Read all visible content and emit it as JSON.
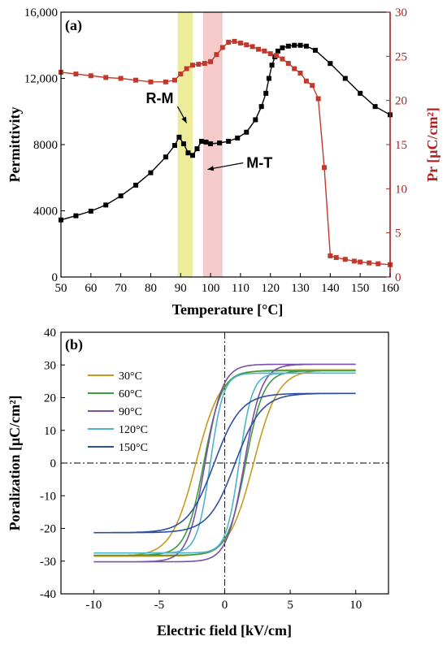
{
  "chart_data": [
    {
      "panel": "(a)",
      "type": "line",
      "xlabel": "Temperature [°C]",
      "ylabel_left": "Permittivity",
      "ylabel_right": "Pr [μC/cm²]",
      "xlim": [
        50,
        160
      ],
      "ylim_left": [
        0,
        16000
      ],
      "ylim_right": [
        0,
        30
      ],
      "x_ticks": [
        "50",
        "60",
        "70",
        "80",
        "90",
        "100",
        "110",
        "120",
        "130",
        "140",
        "150",
        "160"
      ],
      "y_left_ticks": [
        "0",
        "4000",
        "8000",
        "12,000",
        "16,000"
      ],
      "y_right_ticks": [
        "0",
        "5",
        "10",
        "15",
        "20",
        "25",
        "30"
      ],
      "right_axis_color": "#b22222",
      "bands": [
        {
          "from": 89,
          "to": 94,
          "color": "#e6e67a"
        },
        {
          "from": 97.5,
          "to": 104,
          "color": "#f0b8b8"
        }
      ],
      "annotations": [
        {
          "text": "R-M",
          "x": 83,
          "y": 10500,
          "arrow_to": [
            92,
            9300
          ]
        },
        {
          "text": "M-T",
          "x": 112,
          "y": 6600,
          "arrow_to": [
            99,
            6500
          ]
        }
      ],
      "series": [
        {
          "axis": "left",
          "color": "#000000",
          "marker": "square",
          "x": [
            50,
            55,
            60,
            65,
            70,
            75,
            80,
            85,
            88,
            89.5,
            91,
            92.5,
            94,
            95.5,
            97,
            98.5,
            100,
            103,
            106,
            109,
            112,
            115,
            117,
            118.5,
            119.5,
            120.5,
            121.5,
            122.5,
            124,
            126,
            128,
            130,
            132,
            135,
            140,
            145,
            150,
            155,
            160
          ],
          "y": [
            3450,
            3700,
            3980,
            4350,
            4900,
            5550,
            6300,
            7250,
            7950,
            8450,
            8050,
            7500,
            7350,
            7750,
            8200,
            8150,
            8050,
            8100,
            8200,
            8400,
            8750,
            9500,
            10300,
            11100,
            12000,
            12800,
            13300,
            13650,
            13850,
            13950,
            14000,
            14000,
            13950,
            13700,
            12900,
            12000,
            11100,
            10300,
            9800
          ]
        },
        {
          "axis": "right",
          "color": "#c0392b",
          "marker": "square",
          "x": [
            50,
            55,
            60,
            65,
            70,
            75,
            80,
            85,
            88,
            90,
            92,
            94,
            96,
            98,
            100,
            102,
            104,
            106,
            108,
            110,
            112,
            114,
            116,
            118,
            120,
            122,
            124,
            126,
            128,
            130,
            132,
            134,
            136,
            138,
            140,
            142,
            145,
            148,
            150,
            153,
            156,
            160
          ],
          "y": [
            23.2,
            23,
            22.8,
            22.6,
            22.5,
            22.3,
            22.1,
            22.1,
            22.3,
            23,
            23.6,
            24,
            24.1,
            24.2,
            24.4,
            25.2,
            26,
            26.6,
            26.7,
            26.5,
            26.3,
            26.1,
            25.8,
            25.6,
            25.3,
            25.1,
            24.7,
            24.2,
            23.6,
            23.1,
            22.2,
            21.7,
            20.2,
            12.4,
            2.4,
            2.2,
            2,
            1.8,
            1.7,
            1.6,
            1.5,
            1.4
          ]
        }
      ]
    },
    {
      "panel": "(b)",
      "type": "line",
      "xlabel": "Electric field [kV/cm]",
      "ylabel": "Poralization [μC/cm²]",
      "xlim": [
        -12.5,
        12.5
      ],
      "ylim": [
        -40,
        40
      ],
      "x_ticks": [
        "-10",
        "-5",
        "0",
        "5",
        "10"
      ],
      "y_ticks": [
        "-40",
        "-30",
        "-20",
        "-10",
        "0",
        "10",
        "20",
        "30",
        "40"
      ],
      "legend_position": "upper-left",
      "series": [
        {
          "name": "30°C",
          "color": "#c79a1e",
          "Ec": 2.2,
          "Pmax": 28.5,
          "Pr": 23.5,
          "Hs": 0.5
        },
        {
          "name": "60°C",
          "color": "#3e9b3e",
          "Ec": 1.6,
          "Pmax": 28.2,
          "Pr": 23.2,
          "Hs": 0.6
        },
        {
          "name": "90°C",
          "color": "#7b4fa8",
          "Ec": 1.5,
          "Pmax": 30.2,
          "Pr": 24.5,
          "Hs": 0.7
        },
        {
          "name": "120°C",
          "color": "#4fb3cf",
          "Ec": 1.1,
          "Pmax": 27.5,
          "Pr": 22,
          "Hs": 0.9
        },
        {
          "name": "150°C",
          "color": "#2e4fa0",
          "Ec": 0.8,
          "Pmax": 21.3,
          "Pr": 8,
          "Hs": 3.5
        }
      ]
    }
  ]
}
